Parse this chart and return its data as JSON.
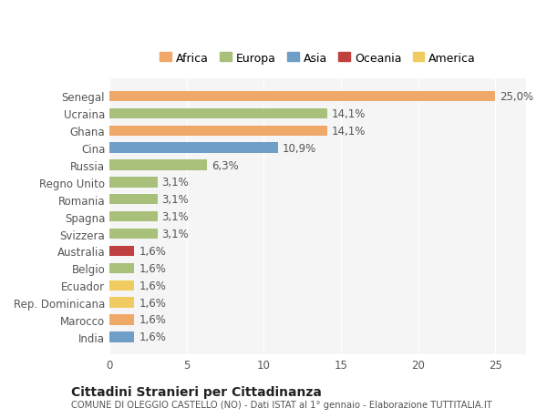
{
  "countries": [
    "Senegal",
    "Ucraina",
    "Ghana",
    "Cina",
    "Russia",
    "Regno Unito",
    "Romania",
    "Spagna",
    "Svizzera",
    "Australia",
    "Belgio",
    "Ecuador",
    "Rep. Dominicana",
    "Marocco",
    "India"
  ],
  "values": [
    25.0,
    14.1,
    14.1,
    10.9,
    6.3,
    3.1,
    3.1,
    3.1,
    3.1,
    1.6,
    1.6,
    1.6,
    1.6,
    1.6,
    1.6
  ],
  "labels": [
    "25,0%",
    "14,1%",
    "14,1%",
    "10,9%",
    "6,3%",
    "3,1%",
    "3,1%",
    "3,1%",
    "3,1%",
    "1,6%",
    "1,6%",
    "1,6%",
    "1,6%",
    "1,6%",
    "1,6%"
  ],
  "continents": [
    "Africa",
    "Europa",
    "Africa",
    "Asia",
    "Europa",
    "Europa",
    "Europa",
    "Europa",
    "Europa",
    "Oceania",
    "Europa",
    "America",
    "America",
    "Africa",
    "Asia"
  ],
  "continent_colors": {
    "Africa": "#F0A868",
    "Europa": "#A8C07A",
    "Asia": "#6F9EC8",
    "Oceania": "#C04040",
    "America": "#F0CC60"
  },
  "legend_order": [
    "Africa",
    "Europa",
    "Asia",
    "Oceania",
    "America"
  ],
  "xlim": [
    0,
    27
  ],
  "xticks": [
    0,
    5,
    10,
    15,
    20,
    25
  ],
  "background_color": "#ffffff",
  "plot_bg_color": "#f5f5f5",
  "title_main": "Cittadini Stranieri per Cittadinanza",
  "title_sub": "COMUNE DI OLEGGIO CASTELLO (NO) - Dati ISTAT al 1° gennaio - Elaborazione TUTTITALIA.IT",
  "bar_height": 0.6,
  "label_fontsize": 8.5,
  "tick_fontsize": 8.5
}
